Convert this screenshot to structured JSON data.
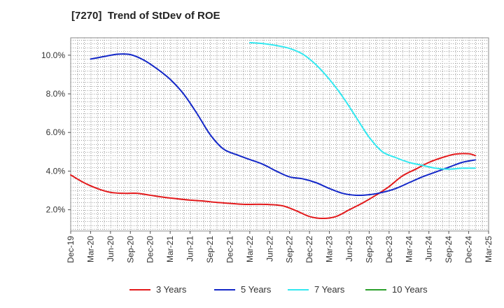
{
  "chart_data": {
    "type": "line",
    "title": "[7270]  Trend of StDev of ROE",
    "xlabel": "",
    "ylabel": "",
    "x_tick_labels": [
      "Dec-19",
      "Mar-20",
      "Jun-20",
      "Sep-20",
      "Dec-20",
      "Mar-21",
      "Jun-21",
      "Sep-21",
      "Dec-21",
      "Mar-22",
      "Jun-22",
      "Sep-22",
      "Dec-22",
      "Mar-23",
      "Jun-23",
      "Sep-23",
      "Dec-23",
      "Mar-24",
      "Jun-24",
      "Sep-24",
      "Dec-24",
      "Mar-25"
    ],
    "y_tick_labels": [
      "2.0%",
      "4.0%",
      "6.0%",
      "8.0%",
      "10.0%"
    ],
    "y_ticks": [
      2,
      4,
      6,
      8,
      10
    ],
    "ylim": [
      0.9,
      10.9
    ],
    "y_unit": "%",
    "grid": true,
    "legend_position": "bottom",
    "series": [
      {
        "name": "3 Years",
        "color": "#e31a1c",
        "points": [
          [
            "Dec-19",
            3.8
          ],
          [
            "Feb-20",
            3.4
          ],
          [
            "Apr-20",
            3.1
          ],
          [
            "Jun-20",
            2.9
          ],
          [
            "Aug-20",
            2.85
          ],
          [
            "Oct-20",
            2.85
          ],
          [
            "Dec-20",
            2.75
          ],
          [
            "Feb-21",
            2.65
          ],
          [
            "Apr-21",
            2.57
          ],
          [
            "Jun-21",
            2.5
          ],
          [
            "Aug-21",
            2.45
          ],
          [
            "Oct-21",
            2.38
          ],
          [
            "Dec-21",
            2.33
          ],
          [
            "Feb-22",
            2.28
          ],
          [
            "Apr-22",
            2.28
          ],
          [
            "Jun-22",
            2.27
          ],
          [
            "Aug-22",
            2.2
          ],
          [
            "Oct-22",
            1.95
          ],
          [
            "Dec-22",
            1.65
          ],
          [
            "Feb-23",
            1.55
          ],
          [
            "Apr-23",
            1.65
          ],
          [
            "Jun-23",
            2.0
          ],
          [
            "Aug-23",
            2.35
          ],
          [
            "Oct-23",
            2.75
          ],
          [
            "Dec-23",
            3.2
          ],
          [
            "Feb-24",
            3.75
          ],
          [
            "Apr-24",
            4.1
          ],
          [
            "Jun-24",
            4.45
          ],
          [
            "Aug-24",
            4.7
          ],
          [
            "Oct-24",
            4.88
          ],
          [
            "Dec-24",
            4.9
          ],
          [
            "Jan-25",
            4.8
          ]
        ]
      },
      {
        "name": "5 Years",
        "color": "#1428c8",
        "points": [
          [
            "Mar-20",
            9.8
          ],
          [
            "May-20",
            9.93
          ],
          [
            "Jul-20",
            10.05
          ],
          [
            "Sep-20",
            10.03
          ],
          [
            "Nov-20",
            9.75
          ],
          [
            "Jan-21",
            9.3
          ],
          [
            "Mar-21",
            8.75
          ],
          [
            "May-21",
            8.0
          ],
          [
            "Jul-21",
            7.0
          ],
          [
            "Sep-21",
            5.9
          ],
          [
            "Nov-21",
            5.15
          ],
          [
            "Jan-22",
            4.85
          ],
          [
            "Mar-22",
            4.6
          ],
          [
            "May-22",
            4.35
          ],
          [
            "Jul-22",
            4.0
          ],
          [
            "Sep-22",
            3.7
          ],
          [
            "Nov-22",
            3.6
          ],
          [
            "Jan-23",
            3.4
          ],
          [
            "Mar-23",
            3.1
          ],
          [
            "May-23",
            2.85
          ],
          [
            "Jul-23",
            2.75
          ],
          [
            "Sep-23",
            2.78
          ],
          [
            "Nov-23",
            2.9
          ],
          [
            "Jan-24",
            3.1
          ],
          [
            "Mar-24",
            3.4
          ],
          [
            "May-24",
            3.7
          ],
          [
            "Jul-24",
            3.95
          ],
          [
            "Sep-24",
            4.2
          ],
          [
            "Nov-24",
            4.45
          ],
          [
            "Jan-25",
            4.58
          ]
        ]
      },
      {
        "name": "7 Years",
        "color": "#33e8f0",
        "points": [
          [
            "Mar-22",
            10.65
          ],
          [
            "May-22",
            10.6
          ],
          [
            "Jul-22",
            10.5
          ],
          [
            "Sep-22",
            10.35
          ],
          [
            "Nov-22",
            10.05
          ],
          [
            "Jan-23",
            9.5
          ],
          [
            "Mar-23",
            8.75
          ],
          [
            "May-23",
            7.85
          ],
          [
            "Jul-23",
            6.8
          ],
          [
            "Sep-23",
            5.75
          ],
          [
            "Nov-23",
            5.0
          ],
          [
            "Jan-24",
            4.7
          ],
          [
            "Mar-24",
            4.45
          ],
          [
            "May-24",
            4.3
          ],
          [
            "Jul-24",
            4.15
          ],
          [
            "Sep-24",
            4.1
          ],
          [
            "Nov-24",
            4.15
          ],
          [
            "Jan-25",
            4.15
          ]
        ]
      },
      {
        "name": "10 Years",
        "color": "#2ca02c",
        "points": []
      }
    ]
  }
}
